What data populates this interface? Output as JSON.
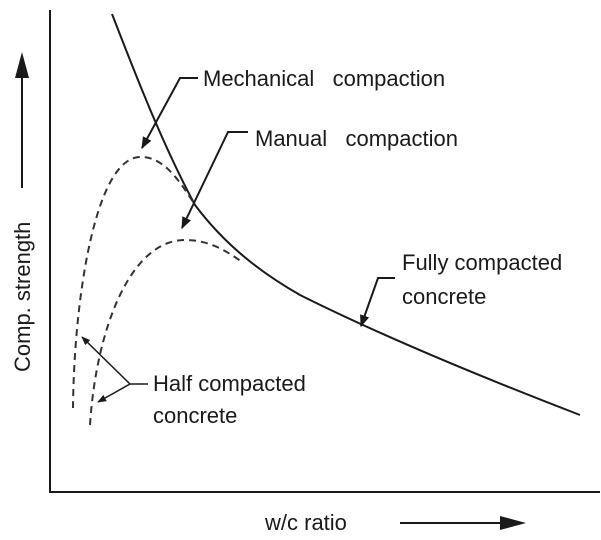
{
  "diagram": {
    "y_axis_label": "Comp. strength",
    "x_axis_label": "w/c ratio",
    "labels": [
      {
        "lines": [
          "Mechanical   compaction"
        ]
      },
      {
        "lines": [
          "Manual   compaction"
        ]
      },
      {
        "lines": [
          "Fully compacted",
          "concrete"
        ]
      },
      {
        "lines": [
          "Half compacted",
          "concrete"
        ]
      }
    ]
  }
}
